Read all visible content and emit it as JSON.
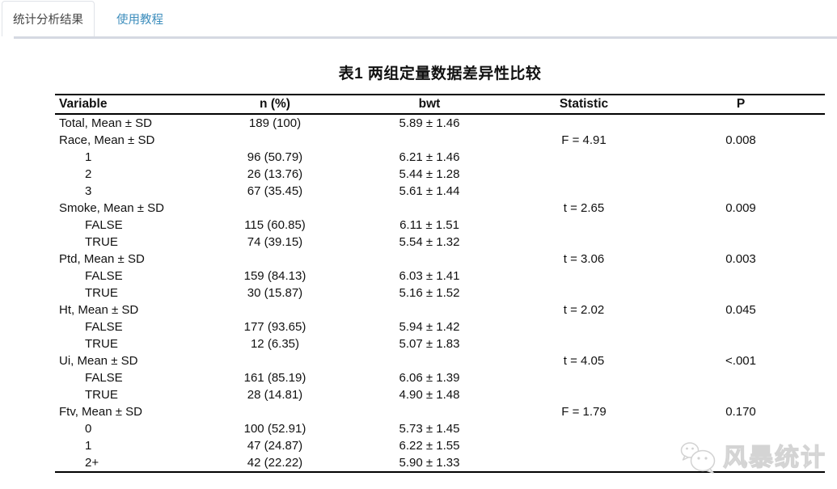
{
  "tabs": [
    {
      "label": "统计分析结果",
      "active": true
    },
    {
      "label": "使用教程",
      "active": false
    }
  ],
  "table": {
    "title": "表1 两组定量数据差异性比较",
    "columns": [
      "Variable",
      "n (%)",
      "bwt",
      "Statistic",
      "P"
    ],
    "rows": [
      {
        "variable": "Total, Mean ± SD",
        "indent": false,
        "n": "189 (100)",
        "bwt": "5.89 ± 1.46",
        "statistic": "",
        "p": ""
      },
      {
        "variable": "Race, Mean ± SD",
        "indent": false,
        "n": "",
        "bwt": "",
        "statistic": "F = 4.91",
        "p": "0.008"
      },
      {
        "variable": "1",
        "indent": true,
        "n": "96 (50.79)",
        "bwt": "6.21 ± 1.46",
        "statistic": "",
        "p": ""
      },
      {
        "variable": "2",
        "indent": true,
        "n": "26 (13.76)",
        "bwt": "5.44 ± 1.28",
        "statistic": "",
        "p": ""
      },
      {
        "variable": "3",
        "indent": true,
        "n": "67 (35.45)",
        "bwt": "5.61 ± 1.44",
        "statistic": "",
        "p": ""
      },
      {
        "variable": "Smoke, Mean ± SD",
        "indent": false,
        "n": "",
        "bwt": "",
        "statistic": "t = 2.65",
        "p": "0.009"
      },
      {
        "variable": "FALSE",
        "indent": true,
        "n": "115 (60.85)",
        "bwt": "6.11 ± 1.51",
        "statistic": "",
        "p": ""
      },
      {
        "variable": "TRUE",
        "indent": true,
        "n": "74 (39.15)",
        "bwt": "5.54 ± 1.32",
        "statistic": "",
        "p": ""
      },
      {
        "variable": "Ptd, Mean ± SD",
        "indent": false,
        "n": "",
        "bwt": "",
        "statistic": "t = 3.06",
        "p": "0.003"
      },
      {
        "variable": "FALSE",
        "indent": true,
        "n": "159 (84.13)",
        "bwt": "6.03 ± 1.41",
        "statistic": "",
        "p": ""
      },
      {
        "variable": "TRUE",
        "indent": true,
        "n": "30 (15.87)",
        "bwt": "5.16 ± 1.52",
        "statistic": "",
        "p": ""
      },
      {
        "variable": "Ht, Mean ± SD",
        "indent": false,
        "n": "",
        "bwt": "",
        "statistic": "t = 2.02",
        "p": "0.045"
      },
      {
        "variable": "FALSE",
        "indent": true,
        "n": "177 (93.65)",
        "bwt": "5.94 ± 1.42",
        "statistic": "",
        "p": ""
      },
      {
        "variable": "TRUE",
        "indent": true,
        "n": "12 (6.35)",
        "bwt": "5.07 ± 1.83",
        "statistic": "",
        "p": ""
      },
      {
        "variable": "Ui, Mean ± SD",
        "indent": false,
        "n": "",
        "bwt": "",
        "statistic": "t = 4.05",
        "p": "<.001"
      },
      {
        "variable": "FALSE",
        "indent": true,
        "n": "161 (85.19)",
        "bwt": "6.06 ± 1.39",
        "statistic": "",
        "p": ""
      },
      {
        "variable": "TRUE",
        "indent": true,
        "n": "28 (14.81)",
        "bwt": "4.90 ± 1.48",
        "statistic": "",
        "p": ""
      },
      {
        "variable": "Ftv, Mean ± SD",
        "indent": false,
        "n": "",
        "bwt": "",
        "statistic": "F = 1.79",
        "p": "0.170"
      },
      {
        "variable": "0",
        "indent": true,
        "n": "100 (52.91)",
        "bwt": "5.73 ± 1.45",
        "statistic": "",
        "p": ""
      },
      {
        "variable": "1",
        "indent": true,
        "n": "47 (24.87)",
        "bwt": "6.22 ± 1.55",
        "statistic": "",
        "p": ""
      },
      {
        "variable": "2+",
        "indent": true,
        "n": "42 (22.22)",
        "bwt": "5.90 ± 1.33",
        "statistic": "",
        "p": ""
      }
    ]
  },
  "watermark": {
    "icon": "wechat-icon",
    "text": "风暴统计"
  },
  "colors": {
    "tab_active_text": "#444444",
    "tab_inactive_text": "#3c8dbc",
    "panel_top_border": "#d5d9e2",
    "table_border": "#000000",
    "watermark": "#d4d4d4"
  }
}
